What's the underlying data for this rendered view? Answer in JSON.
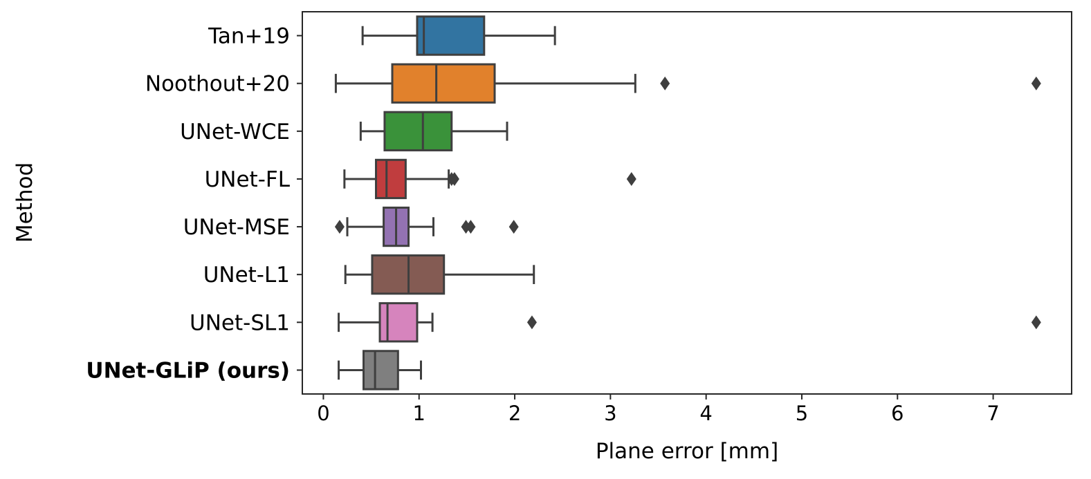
{
  "chart_data": {
    "type": "boxplot",
    "orientation": "horizontal",
    "xlabel": "Plane error [mm]",
    "ylabel": "Method",
    "xlim": [
      -0.22,
      7.82
    ],
    "xticks": [
      0,
      1,
      2,
      3,
      4,
      5,
      6,
      7
    ],
    "grid": false,
    "legend": "none",
    "categories": [
      {
        "name": "Tan+19",
        "bold": false,
        "color": "#3274a1",
        "whisker_low": 0.41,
        "q1": 0.98,
        "median": 1.05,
        "q3": 1.68,
        "whisker_high": 2.42,
        "outliers": []
      },
      {
        "name": "Noothout+20",
        "bold": false,
        "color": "#e1812c",
        "whisker_low": 0.13,
        "q1": 0.72,
        "median": 1.18,
        "q3": 1.79,
        "whisker_high": 3.26,
        "outliers": [
          3.57,
          7.45
        ]
      },
      {
        "name": "UNet-WCE",
        "bold": false,
        "color": "#3a923a",
        "whisker_low": 0.39,
        "q1": 0.64,
        "median": 1.04,
        "q3": 1.34,
        "whisker_high": 1.92,
        "outliers": []
      },
      {
        "name": "UNet-FL",
        "bold": false,
        "color": "#c03d3e",
        "whisker_low": 0.22,
        "q1": 0.55,
        "median": 0.66,
        "q3": 0.86,
        "whisker_high": 1.31,
        "outliers": [
          1.34,
          1.37,
          3.22
        ]
      },
      {
        "name": "UNet-MSE",
        "bold": false,
        "color": "#9372b2",
        "whisker_low": 0.25,
        "q1": 0.63,
        "median": 0.76,
        "q3": 0.89,
        "whisker_high": 1.15,
        "outliers": [
          0.17,
          1.49,
          1.54,
          1.99
        ]
      },
      {
        "name": "UNet-L1",
        "bold": false,
        "color": "#845b53",
        "whisker_low": 0.23,
        "q1": 0.51,
        "median": 0.89,
        "q3": 1.26,
        "whisker_high": 2.2,
        "outliers": []
      },
      {
        "name": "UNet-SL1",
        "bold": false,
        "color": "#d684bd",
        "whisker_low": 0.16,
        "q1": 0.59,
        "median": 0.67,
        "q3": 0.98,
        "whisker_high": 1.14,
        "outliers": [
          2.18,
          7.45
        ]
      },
      {
        "name": "UNet-GLiP (ours)",
        "bold": true,
        "color": "#7f7f7f",
        "whisker_low": 0.16,
        "q1": 0.42,
        "median": 0.54,
        "q3": 0.78,
        "whisker_high": 1.02,
        "outliers": []
      }
    ]
  }
}
